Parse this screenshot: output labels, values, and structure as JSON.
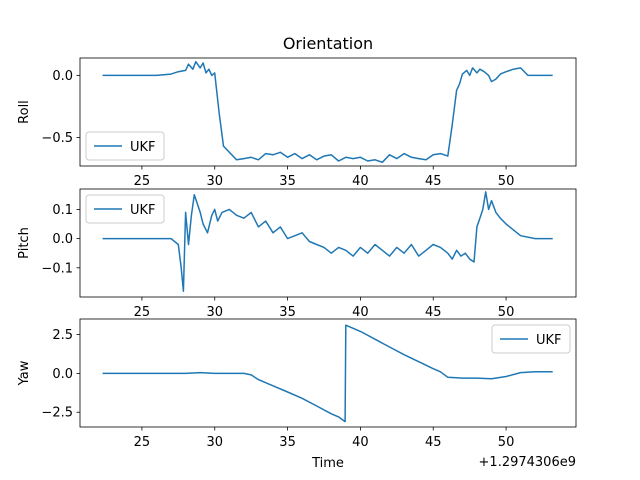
{
  "title": "Orientation",
  "xlabel": "Time",
  "offset_label": "+1.2974306e9",
  "colors": {
    "line": "#1f77b4",
    "axes": "#000000",
    "legend_border": "#cccccc"
  },
  "chart_data": [
    {
      "type": "line",
      "ylabel": "Roll",
      "xlim": [
        20.75,
        54.8
      ],
      "ylim": [
        -0.73,
        0.14
      ],
      "xticks": [
        25,
        30,
        35,
        40,
        45,
        50
      ],
      "yticks": [
        0.0,
        -0.5
      ],
      "ytick_labels": [
        "0.0",
        "−0.5"
      ],
      "legend": {
        "label": "UKF",
        "position": "lower-left"
      },
      "series": [
        {
          "name": "UKF",
          "x": [
            22.3,
            24,
            26,
            27,
            27.5,
            28,
            28.2,
            28.5,
            28.7,
            29,
            29.2,
            29.4,
            29.6,
            29.8,
            30.0,
            30.3,
            30.6,
            31,
            31.5,
            32,
            32.5,
            33,
            33.5,
            34,
            34.5,
            35,
            35.5,
            36,
            36.5,
            37,
            37.5,
            38,
            38.5,
            39,
            39.5,
            40,
            40.5,
            41,
            41.5,
            42,
            42.5,
            43,
            43.5,
            44,
            44.5,
            45,
            45.5,
            46,
            46.3,
            46.6,
            46.8,
            47,
            47.3,
            47.5,
            47.7,
            48,
            48.2,
            48.5,
            48.8,
            49,
            49.3,
            49.6,
            50,
            50.5,
            51,
            51.5,
            52,
            53.2
          ],
          "y": [
            0.0,
            0.0,
            0.0,
            0.01,
            0.03,
            0.04,
            0.09,
            0.05,
            0.11,
            0.06,
            0.1,
            0.02,
            0.05,
            0.0,
            0.02,
            -0.3,
            -0.57,
            -0.62,
            -0.68,
            -0.67,
            -0.66,
            -0.68,
            -0.63,
            -0.64,
            -0.62,
            -0.66,
            -0.63,
            -0.67,
            -0.64,
            -0.68,
            -0.65,
            -0.64,
            -0.69,
            -0.66,
            -0.67,
            -0.66,
            -0.69,
            -0.68,
            -0.7,
            -0.64,
            -0.67,
            -0.63,
            -0.66,
            -0.67,
            -0.68,
            -0.64,
            -0.63,
            -0.65,
            -0.4,
            -0.12,
            -0.07,
            0.01,
            0.04,
            0.0,
            0.06,
            0.02,
            0.05,
            0.03,
            0.0,
            -0.05,
            -0.03,
            0.01,
            0.03,
            0.05,
            0.06,
            0.0,
            0.0,
            0.0
          ]
        }
      ]
    },
    {
      "type": "line",
      "ylabel": "Pitch",
      "xlim": [
        20.75,
        54.8
      ],
      "ylim": [
        -0.2,
        0.17
      ],
      "xticks": [
        25,
        30,
        35,
        40,
        45,
        50
      ],
      "yticks": [
        0.1,
        0.0,
        -0.1
      ],
      "ytick_labels": [
        "0.1",
        "0.0",
        "−0.1"
      ],
      "legend": {
        "label": "UKF",
        "position": "upper-left"
      },
      "series": [
        {
          "name": "UKF",
          "x": [
            22.3,
            24,
            25,
            26,
            27,
            27.5,
            27.7,
            27.85,
            28.0,
            28.2,
            28.4,
            28.6,
            28.8,
            29.0,
            29.2,
            29.5,
            29.8,
            30.0,
            30.2,
            30.5,
            31,
            31.5,
            32,
            32.5,
            33,
            33.5,
            34,
            34.5,
            35,
            35.5,
            36,
            36.5,
            37,
            37.5,
            38,
            38.5,
            39,
            39.5,
            40,
            40.5,
            41,
            41.5,
            42,
            42.5,
            43,
            43.5,
            44,
            44.5,
            45,
            45.5,
            46,
            46.3,
            46.6,
            46.9,
            47.2,
            47.5,
            47.8,
            48.0,
            48.2,
            48.4,
            48.6,
            48.8,
            49.0,
            49.3,
            49.6,
            50.0,
            50.5,
            51,
            52,
            53.2
          ],
          "y": [
            0.0,
            0.0,
            0.0,
            0.0,
            0.0,
            -0.02,
            -0.1,
            -0.18,
            0.09,
            -0.02,
            0.08,
            0.15,
            0.12,
            0.09,
            0.05,
            0.02,
            0.08,
            0.1,
            0.06,
            0.09,
            0.1,
            0.08,
            0.07,
            0.09,
            0.04,
            0.06,
            0.02,
            0.04,
            0.0,
            0.01,
            0.02,
            -0.01,
            -0.02,
            -0.03,
            -0.05,
            -0.03,
            -0.04,
            -0.06,
            -0.03,
            -0.05,
            -0.02,
            -0.04,
            -0.06,
            -0.03,
            -0.05,
            -0.02,
            -0.06,
            -0.04,
            -0.02,
            -0.03,
            -0.05,
            -0.07,
            -0.04,
            -0.06,
            -0.05,
            -0.07,
            -0.08,
            0.04,
            0.07,
            0.1,
            0.16,
            0.1,
            0.13,
            0.09,
            0.07,
            0.05,
            0.03,
            0.01,
            0.0,
            0.0
          ]
        }
      ]
    },
    {
      "type": "line",
      "ylabel": "Yaw",
      "xlim": [
        20.75,
        54.8
      ],
      "ylim": [
        -3.45,
        3.5
      ],
      "xticks": [
        25,
        30,
        35,
        40,
        45,
        50
      ],
      "xtick_labels": [
        "25",
        "30",
        "35",
        "40",
        "45",
        "50"
      ],
      "yticks": [
        2.5,
        0.0,
        -2.5
      ],
      "ytick_labels": [
        "2.5",
        "0.0",
        "−2.5"
      ],
      "legend": {
        "label": "UKF",
        "position": "upper-right"
      },
      "series": [
        {
          "name": "UKF",
          "x": [
            22.3,
            25,
            28,
            29,
            30,
            31,
            32,
            32.5,
            33,
            34,
            35,
            36,
            37,
            38,
            38.5,
            38.95,
            39.0,
            40,
            41,
            42,
            43,
            44,
            45,
            45.5,
            46,
            47,
            48,
            49,
            50,
            51,
            52,
            53.2
          ],
          "y": [
            0.0,
            0.0,
            0.0,
            0.05,
            0.0,
            0.0,
            0.0,
            -0.1,
            -0.4,
            -0.8,
            -1.2,
            -1.6,
            -2.1,
            -2.6,
            -2.8,
            -3.1,
            3.1,
            2.7,
            2.2,
            1.7,
            1.2,
            0.75,
            0.3,
            0.1,
            -0.25,
            -0.3,
            -0.3,
            -0.35,
            -0.2,
            0.05,
            0.1,
            0.1
          ]
        }
      ]
    }
  ]
}
